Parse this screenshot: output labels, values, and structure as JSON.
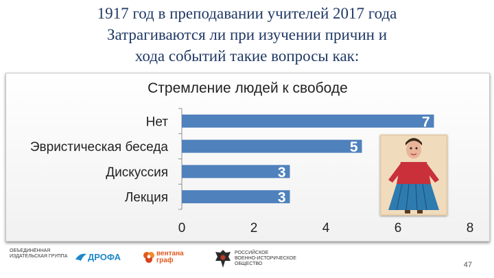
{
  "slide": {
    "heading_lines": [
      "1917 год в преподавании учителей 2017 года",
      "Затрагиваются ли при изучении причин и",
      "хода событий такие вопросы как:"
    ],
    "page_number": "47"
  },
  "chart_data": {
    "type": "bar",
    "orientation": "horizontal",
    "title": "Стремление людей к свободе",
    "categories": [
      "Нет",
      "Эвристическая беседа",
      "Дискуссия",
      "Лекция"
    ],
    "values": [
      7,
      5,
      3,
      3
    ],
    "data_labels": [
      "7",
      "5",
      "3",
      "3"
    ],
    "xlim": [
      0,
      8
    ],
    "x_ticks": [
      "0",
      "2",
      "4",
      "6",
      "8"
    ],
    "grid": false,
    "bar_color": "#4f81bd"
  },
  "logos": {
    "publisher_group": "ОБЪЕДИНЁННАЯ\nИЗДАТЕЛЬСКАЯ ГРУППА",
    "drofa": "ДРОФА",
    "ventana": "вентана\nграф",
    "history_society": "РОССИЙСКОЕ\nВОЕННО-ИСТОРИЧЕСКОЕ\nОБЩЕСТВО"
  }
}
